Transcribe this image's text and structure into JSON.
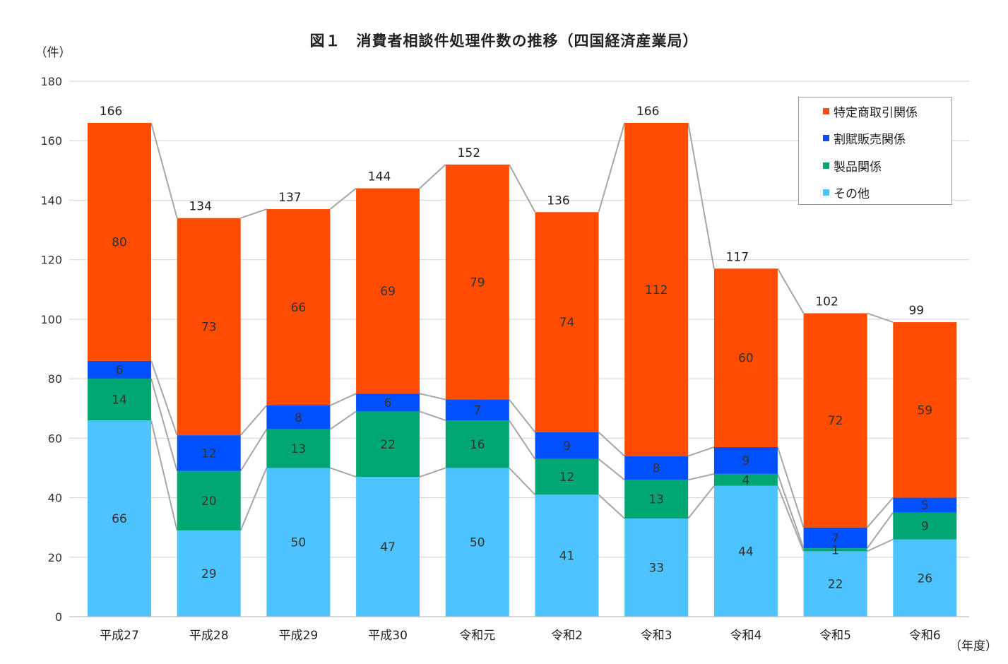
{
  "chart_data": {
    "type": "bar",
    "stacked": true,
    "title": "図１　消費者相談件処理件数の推移（四国経済産業局）",
    "ylabel": "（件）",
    "xlabel": "（年度）",
    "ylim": [
      0,
      180
    ],
    "yticks": [
      0,
      20,
      40,
      60,
      80,
      100,
      120,
      140,
      160,
      180
    ],
    "grid": true,
    "legend_position": "top-right",
    "categories": [
      "平成27",
      "平成28",
      "平成29",
      "平成30",
      "令和元",
      "令和2",
      "令和3",
      "令和4",
      "令和5",
      "令和6"
    ],
    "series": [
      {
        "name": "その他",
        "color": "#4DC3FF",
        "values": [
          66,
          29,
          50,
          47,
          50,
          41,
          33,
          44,
          22,
          26
        ]
      },
      {
        "name": "製品関係",
        "color": "#00A772",
        "values": [
          14,
          20,
          13,
          22,
          16,
          12,
          13,
          4,
          1,
          9
        ]
      },
      {
        "name": "割賦販売関係",
        "color": "#0050FF",
        "values": [
          6,
          12,
          8,
          6,
          7,
          9,
          8,
          9,
          7,
          5
        ]
      },
      {
        "name": "特定商取引関係",
        "color": "#FF4C00",
        "values": [
          80,
          73,
          66,
          69,
          79,
          74,
          112,
          60,
          72,
          59
        ]
      }
    ],
    "totals": [
      166,
      134,
      137,
      144,
      152,
      136,
      166,
      117,
      102,
      99
    ],
    "legend_order": [
      "特定商取引関係",
      "割賦販売関係",
      "製品関係",
      "その他"
    ]
  }
}
